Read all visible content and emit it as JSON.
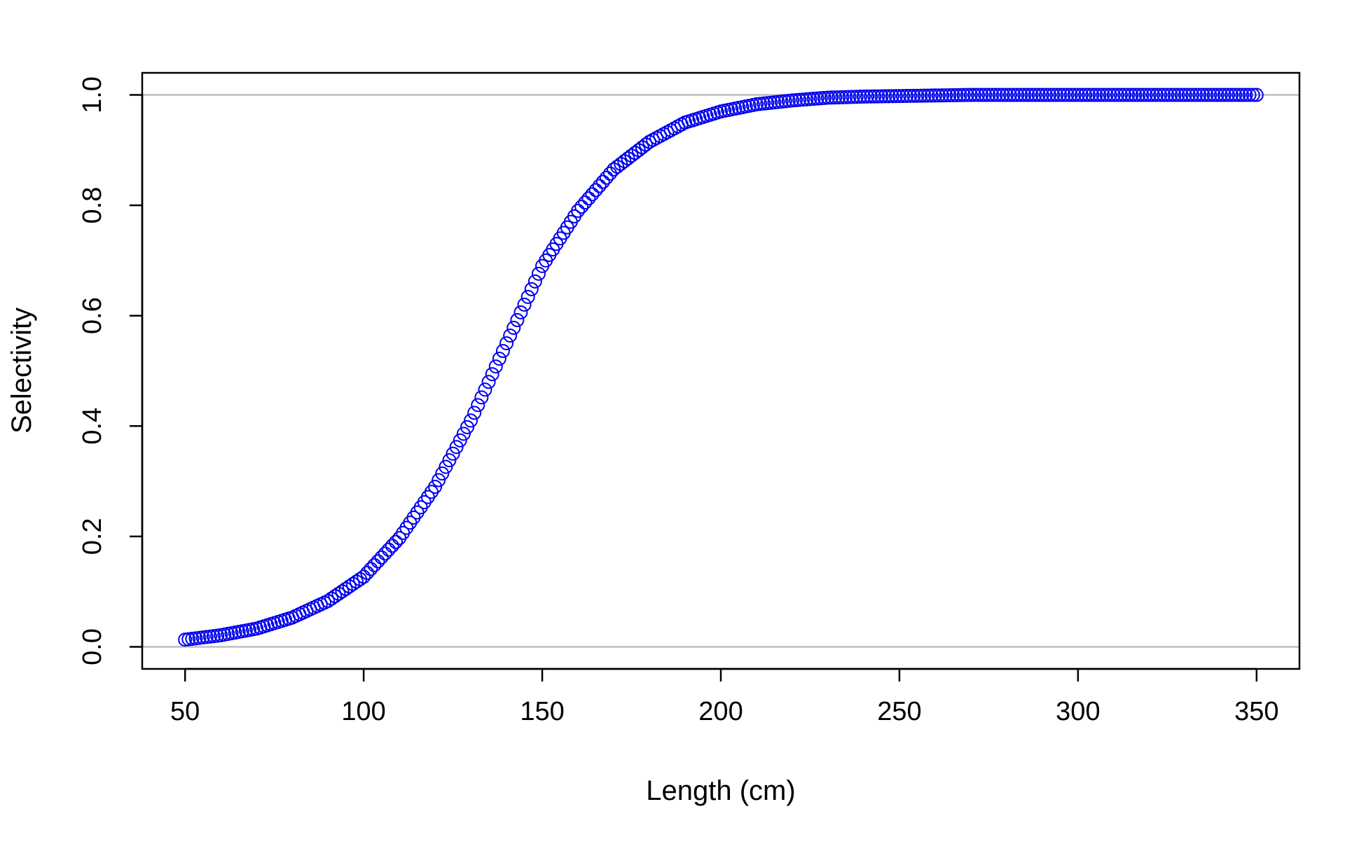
{
  "chart_data": {
    "type": "scatter",
    "title": "",
    "xlabel": "Length (cm)",
    "ylabel": "Selectivity",
    "xlim": [
      38,
      362
    ],
    "ylim": [
      -0.04,
      1.04
    ],
    "xticks": [
      50,
      100,
      150,
      200,
      250,
      300,
      350
    ],
    "yticks": [
      0.0,
      0.2,
      0.4,
      0.6,
      0.8,
      1.0
    ],
    "xtick_labels": [
      "50",
      "100",
      "150",
      "200",
      "250",
      "300",
      "350"
    ],
    "ytick_labels": [
      "0.0",
      "0.2",
      "0.4",
      "0.6",
      "0.8",
      "1.0"
    ],
    "reference_lines": [
      0.0,
      1.0
    ],
    "grid": false,
    "legend": "none",
    "colors": {
      "points": "#0000ee",
      "reference_lines": "#bebebe",
      "axes": "#000000"
    },
    "series": [
      {
        "marker": "open-circle",
        "color": "#0000ee",
        "x": [
          50,
          60,
          70,
          80,
          90,
          100,
          110,
          120,
          130,
          140,
          150,
          160,
          170,
          180,
          190,
          200,
          210,
          220,
          230,
          240,
          250,
          260,
          270,
          280,
          290,
          300,
          310,
          320,
          330,
          340,
          350
        ],
        "values": [
          0.013,
          0.021,
          0.033,
          0.053,
          0.083,
          0.127,
          0.197,
          0.29,
          0.41,
          0.55,
          0.69,
          0.79,
          0.865,
          0.915,
          0.95,
          0.97,
          0.983,
          0.99,
          0.995,
          0.997,
          0.998,
          0.999,
          1.0,
          1.0,
          1.0,
          1.0,
          1.0,
          1.0,
          1.0,
          1.0,
          1.0
        ]
      }
    ]
  }
}
